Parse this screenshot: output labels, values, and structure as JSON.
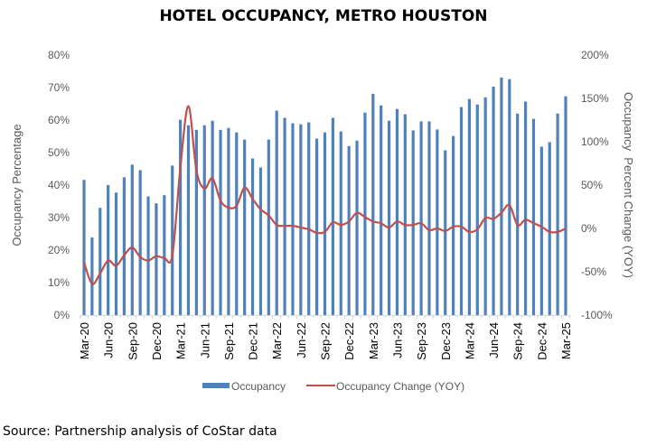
{
  "chart_data": {
    "type": "bar",
    "title": "HOTEL OCCUPANCY, METRO HOUSTON",
    "x": [
      "Mar-20",
      "Apr-20",
      "May-20",
      "Jun-20",
      "Jul-20",
      "Aug-20",
      "Sep-20",
      "Oct-20",
      "Nov-20",
      "Dec-20",
      "Jan-21",
      "Feb-21",
      "Mar-21",
      "Apr-21",
      "May-21",
      "Jun-21",
      "Jul-21",
      "Aug-21",
      "Sep-21",
      "Oct-21",
      "Nov-21",
      "Dec-21",
      "Jan-22",
      "Feb-22",
      "Mar-22",
      "Apr-22",
      "May-22",
      "Jun-22",
      "Jul-22",
      "Aug-22",
      "Sep-22",
      "Oct-22",
      "Nov-22",
      "Dec-22",
      "Jan-23",
      "Feb-23",
      "Mar-23",
      "Apr-23",
      "May-23",
      "Jun-23",
      "Jul-23",
      "Aug-23",
      "Sep-23",
      "Oct-23",
      "Nov-23",
      "Dec-23",
      "Jan-24",
      "Feb-24",
      "Mar-24",
      "Apr-24",
      "May-24",
      "Jun-24",
      "Jul-24",
      "Aug-24",
      "Sep-24",
      "Oct-24",
      "Nov-24",
      "Dec-24",
      "Jan-25",
      "Feb-25",
      "Mar-25"
    ],
    "xtick_labels": [
      "Mar-20",
      "Jun-20",
      "Sep-20",
      "Dec-20",
      "Mar-21",
      "Jun-21",
      "Sep-21",
      "Dec-21",
      "Mar-22",
      "Jun-22",
      "Sep-22",
      "Dec-22",
      "Mar-23",
      "Jun-23",
      "Sep-23",
      "Dec-23",
      "Mar-24",
      "Jun-24",
      "Sep-24",
      "Dec-24",
      "Mar-25"
    ],
    "series": [
      {
        "name": "Occupancy",
        "type": "bar",
        "axis": "left",
        "color": "#4F81BD",
        "values": [
          41.6,
          23.9,
          33.0,
          40.0,
          37.7,
          42.4,
          46.3,
          44.6,
          36.5,
          34.4,
          36.9,
          46.0,
          60.1,
          58.4,
          57.0,
          58.4,
          59.8,
          57.0,
          57.6,
          56.2,
          54.0,
          48.2,
          45.4,
          54.0,
          62.9,
          60.7,
          59.0,
          58.7,
          59.3,
          54.3,
          56.2,
          60.7,
          56.5,
          52.0,
          53.7,
          62.3,
          68.1,
          64.5,
          59.8,
          63.4,
          61.8,
          56.8,
          59.6,
          59.6,
          57.1,
          50.7,
          55.1,
          64.0,
          66.5,
          64.8,
          67.0,
          70.3,
          73.1,
          72.6,
          62.0,
          65.7,
          60.4,
          51.8,
          53.2,
          62.0,
          67.3
        ]
      },
      {
        "name": "Occupancy Change (YOY)",
        "type": "line",
        "axis": "right",
        "color": "#C0504D",
        "values": [
          -39,
          -64,
          -52,
          -37,
          -43,
          -31,
          -22,
          -33,
          -37,
          -32,
          -34,
          -31,
          70,
          141,
          67,
          46,
          58,
          32,
          24,
          26,
          47,
          34,
          22,
          15,
          4,
          3,
          3,
          1,
          -1,
          -5,
          -4,
          7,
          4,
          8,
          18,
          13,
          8,
          6,
          1,
          8,
          4,
          4,
          6,
          -2,
          0,
          -3,
          2,
          2,
          -4,
          -1,
          12,
          11,
          18,
          27,
          4,
          10,
          6,
          2,
          -4,
          -4,
          0
        ]
      }
    ],
    "ylabel": "Occupancy Percentage",
    "ylim": [
      0,
      80
    ],
    "yticks": [
      "0%",
      "10%",
      "20%",
      "30%",
      "40%",
      "50%",
      "60%",
      "70%",
      "80%"
    ],
    "y2label": "Occupancy  Percent Change (YOY)",
    "y2lim": [
      -100,
      200
    ],
    "y2ticks": [
      "-100%",
      "-50%",
      "0%",
      "50%",
      "100%",
      "150%",
      "200%"
    ],
    "legend": [
      "Occupancy",
      "Occupancy Change (YOY)"
    ],
    "legend_position": "bottom",
    "grid": false
  },
  "source": "Source: Partnership analysis of CoStar data"
}
